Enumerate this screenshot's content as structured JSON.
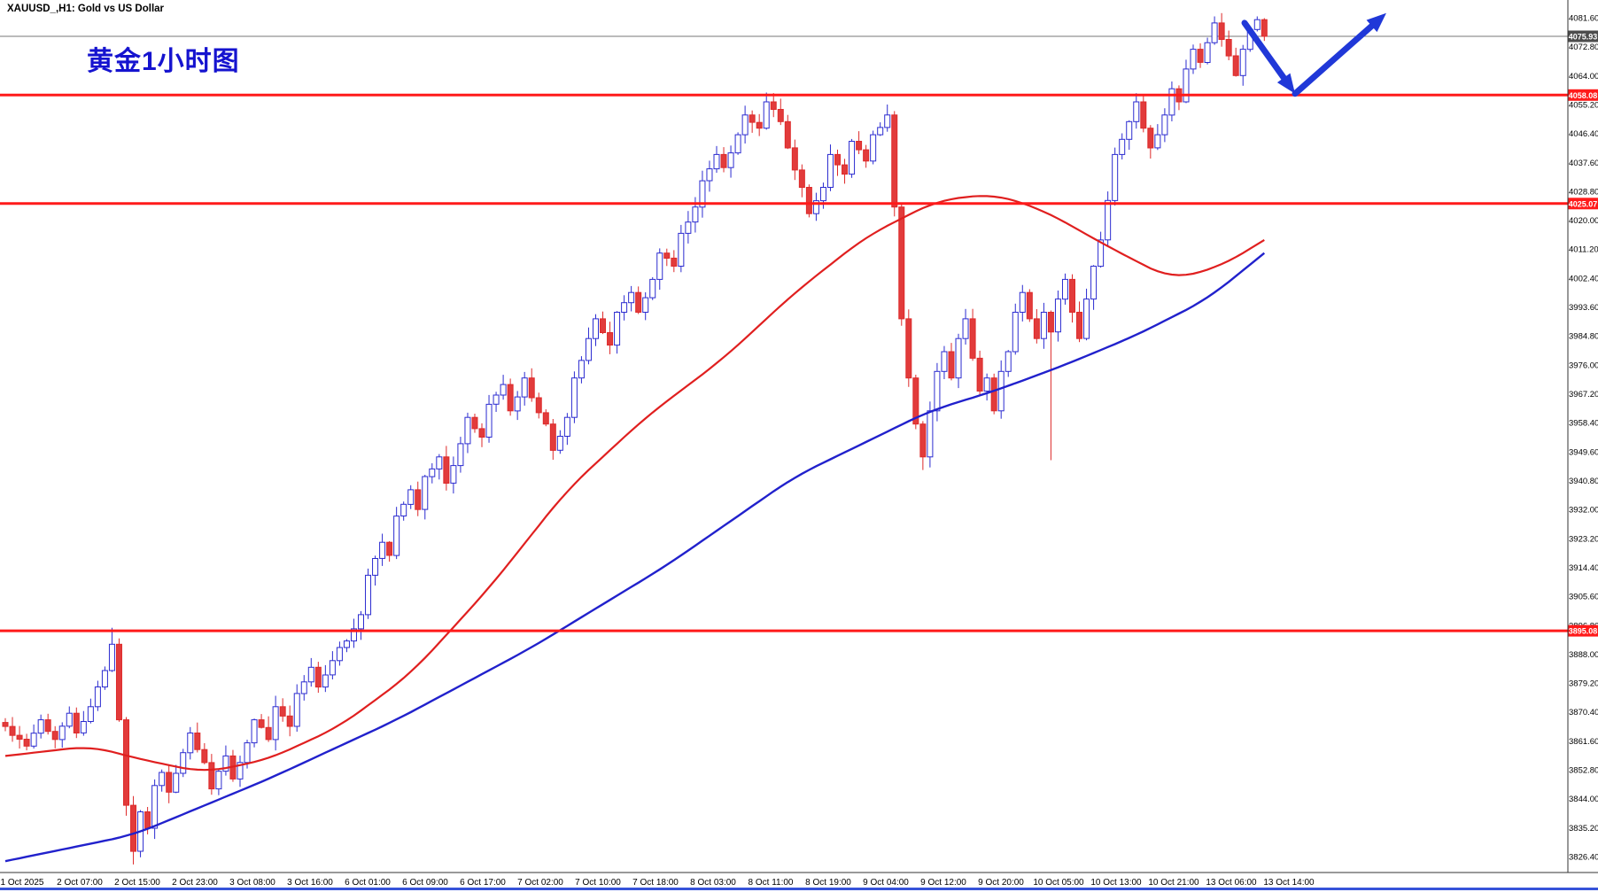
{
  "window": {
    "title": "XAUUSD_,H1:  Gold vs US Dollar",
    "bottom_border_color": "#3653d9"
  },
  "annotation": {
    "text": "黄金1小时图",
    "color": "#1513cf"
  },
  "chart_data": {
    "type": "candlestick",
    "symbol": "XAUUSD_",
    "timeframe": "H1",
    "description": "Gold vs US Dollar",
    "current": {
      "price": 4075.93,
      "label": "4075.93"
    },
    "levels": [
      {
        "price": 4058.08,
        "label": "4058.08"
      },
      {
        "price": 4025.07,
        "label": "4025.07"
      },
      {
        "price": 3895.08,
        "label": "3895.08"
      }
    ],
    "colors": {
      "bull": "#2b2bd0",
      "bear": "#dd2a2a",
      "bull_fill": "#ffffff",
      "bear_fill": "#e23b3b",
      "level": "#ff1a1a",
      "bid_line": "#777777",
      "bid_tag_bg": "#4c4c4c",
      "ma_fast": "#e01f1f",
      "ma_slow": "#2121cc",
      "axis_text": "#000000"
    },
    "y_axis": {
      "max": 4081.6,
      "min": 3826.4,
      "step": 8.8,
      "labels": [
        "4081.60",
        "4072.80",
        "4064.00",
        "4055.20",
        "4046.40",
        "4037.60",
        "4028.80",
        "4020.00",
        "4011.20",
        "4002.40",
        "3993.60",
        "3984.80",
        "3976.00",
        "3967.20",
        "3958.40",
        "3949.60",
        "3940.80",
        "3932.00",
        "3923.20",
        "3914.40",
        "3905.60",
        "3896.80",
        "3888.00",
        "3879.20",
        "3870.40",
        "3861.60",
        "3852.80",
        "3844.00",
        "3835.20",
        "3826.40"
      ]
    },
    "x_axis": {
      "labels": [
        "1 Oct 2025",
        "2 Oct 07:00",
        "2 Oct 15:00",
        "2 Oct 23:00",
        "3 Oct 08:00",
        "3 Oct 16:00",
        "6 Oct 01:00",
        "6 Oct 09:00",
        "6 Oct 17:00",
        "7 Oct 02:00",
        "7 Oct 10:00",
        "7 Oct 18:00",
        "8 Oct 03:00",
        "8 Oct 11:00",
        "8 Oct 19:00",
        "9 Oct 04:00",
        "9 Oct 12:00",
        "9 Oct 20:00",
        "10 Oct 05:00",
        "10 Oct 13:00",
        "10 Oct 21:00",
        "13 Oct 06:00",
        "13 Oct 14:00"
      ]
    },
    "candles": {
      "count": 178,
      "anchors": [
        [
          0,
          3866
        ],
        [
          3,
          3860
        ],
        [
          5,
          3868
        ],
        [
          7,
          3862
        ],
        [
          9,
          3870
        ],
        [
          10,
          3864
        ],
        [
          12,
          3872
        ],
        [
          14,
          3883
        ],
        [
          15,
          3891
        ],
        [
          16,
          3868
        ],
        [
          17,
          3842
        ],
        [
          18,
          3828
        ],
        [
          19,
          3840
        ],
        [
          20,
          3835
        ],
        [
          21,
          3848
        ],
        [
          22,
          3852
        ],
        [
          23,
          3846
        ],
        [
          25,
          3858
        ],
        [
          26,
          3864
        ],
        [
          28,
          3855
        ],
        [
          29,
          3847
        ],
        [
          31,
          3857
        ],
        [
          32,
          3850
        ],
        [
          34,
          3861
        ],
        [
          35,
          3868
        ],
        [
          37,
          3862
        ],
        [
          38,
          3872
        ],
        [
          40,
          3866
        ],
        [
          41,
          3876
        ],
        [
          43,
          3884
        ],
        [
          44,
          3878
        ],
        [
          46,
          3886
        ],
        [
          47,
          3890
        ],
        [
          48,
          3892
        ],
        [
          50,
          3900
        ],
        [
          51,
          3912
        ],
        [
          53,
          3922
        ],
        [
          54,
          3918
        ],
        [
          55,
          3930
        ],
        [
          57,
          3938
        ],
        [
          58,
          3932
        ],
        [
          59,
          3942
        ],
        [
          61,
          3948
        ],
        [
          62,
          3940
        ],
        [
          64,
          3952
        ],
        [
          65,
          3960
        ],
        [
          67,
          3954
        ],
        [
          68,
          3964
        ],
        [
          70,
          3970
        ],
        [
          71,
          3962
        ],
        [
          73,
          3972
        ],
        [
          74,
          3966
        ],
        [
          76,
          3958
        ],
        [
          77,
          3950
        ],
        [
          79,
          3960
        ],
        [
          80,
          3972
        ],
        [
          82,
          3984
        ],
        [
          83,
          3990
        ],
        [
          85,
          3982
        ],
        [
          86,
          3992
        ],
        [
          88,
          3998
        ],
        [
          89,
          3992
        ],
        [
          91,
          4002
        ],
        [
          92,
          4010
        ],
        [
          94,
          4006
        ],
        [
          95,
          4016
        ],
        [
          97,
          4024
        ],
        [
          98,
          4032
        ],
        [
          100,
          4040
        ],
        [
          101,
          4036
        ],
        [
          103,
          4046
        ],
        [
          104,
          4052
        ],
        [
          106,
          4048
        ],
        [
          107,
          4056
        ],
        [
          109,
          4050
        ],
        [
          110,
          4042
        ],
        [
          112,
          4030
        ],
        [
          113,
          4022
        ],
        [
          115,
          4030
        ],
        [
          116,
          4040
        ],
        [
          118,
          4034
        ],
        [
          119,
          4044
        ],
        [
          121,
          4038
        ],
        [
          122,
          4046
        ],
        [
          124,
          4052
        ],
        [
          125,
          4024
        ],
        [
          126,
          3990
        ],
        [
          127,
          3972
        ],
        [
          128,
          3958
        ],
        [
          129,
          3948
        ],
        [
          130,
          3962
        ],
        [
          131,
          3974
        ],
        [
          132,
          3980
        ],
        [
          133,
          3972
        ],
        [
          134,
          3984
        ],
        [
          135,
          3990
        ],
        [
          136,
          3978
        ],
        [
          137,
          3968
        ],
        [
          138,
          3972
        ],
        [
          139,
          3962
        ],
        [
          140,
          3974
        ],
        [
          141,
          3980
        ],
        [
          142,
          3992
        ],
        [
          143,
          3998
        ],
        [
          144,
          3990
        ],
        [
          145,
          3984
        ],
        [
          146,
          3992
        ],
        [
          147,
          3986
        ],
        [
          148,
          3996
        ],
        [
          149,
          4002
        ],
        [
          150,
          3992
        ],
        [
          151,
          3984
        ],
        [
          152,
          3996
        ],
        [
          153,
          4006
        ],
        [
          154,
          4014
        ],
        [
          155,
          4026
        ],
        [
          156,
          4040
        ],
        [
          158,
          4050
        ],
        [
          159,
          4056
        ],
        [
          160,
          4048
        ],
        [
          161,
          4042
        ],
        [
          162,
          4046
        ],
        [
          163,
          4052
        ],
        [
          164,
          4060
        ],
        [
          165,
          4056
        ],
        [
          166,
          4066
        ],
        [
          167,
          4072
        ],
        [
          168,
          4068
        ],
        [
          169,
          4074
        ],
        [
          170,
          4080
        ],
        [
          171,
          4075
        ],
        [
          172,
          4070
        ],
        [
          173,
          4064
        ],
        [
          174,
          4072
        ],
        [
          175,
          4078
        ],
        [
          176,
          4081
        ],
        [
          177,
          4075.93
        ]
      ],
      "wick_overrides": {
        "15": {
          "high": 3896
        },
        "18": {
          "low": 3824
        },
        "129": {
          "low": 3944
        },
        "147": {
          "low": 3947
        },
        "170": {
          "high": 4082
        },
        "176": {
          "high": 4082
        }
      }
    },
    "ma_fast": {
      "points": [
        [
          0,
          3857
        ],
        [
          12,
          3860
        ],
        [
          19,
          3856
        ],
        [
          28,
          3852
        ],
        [
          37,
          3856
        ],
        [
          47,
          3866
        ],
        [
          57,
          3882
        ],
        [
          68,
          3908
        ],
        [
          79,
          3938
        ],
        [
          90,
          3960
        ],
        [
          101,
          3978
        ],
        [
          111,
          3998
        ],
        [
          121,
          4015
        ],
        [
          131,
          4026
        ],
        [
          139,
          4028
        ],
        [
          146,
          4023
        ],
        [
          155,
          4012
        ],
        [
          164,
          4002
        ],
        [
          171,
          4006
        ],
        [
          177,
          4014
        ]
      ]
    },
    "ma_slow": {
      "points": [
        [
          0,
          3825
        ],
        [
          18,
          3833
        ],
        [
          37,
          3850
        ],
        [
          55,
          3868
        ],
        [
          74,
          3890
        ],
        [
          93,
          3915
        ],
        [
          111,
          3942
        ],
        [
          130,
          3962
        ],
        [
          139,
          3968
        ],
        [
          149,
          3976
        ],
        [
          159,
          3985
        ],
        [
          169,
          3996
        ],
        [
          177,
          4010
        ]
      ]
    },
    "forecast_arrow": {
      "color": "#2038d8",
      "points": [
        [
          1405,
          4080
        ],
        [
          1462,
          4058.5
        ],
        [
          1565,
          4083
        ]
      ]
    }
  }
}
